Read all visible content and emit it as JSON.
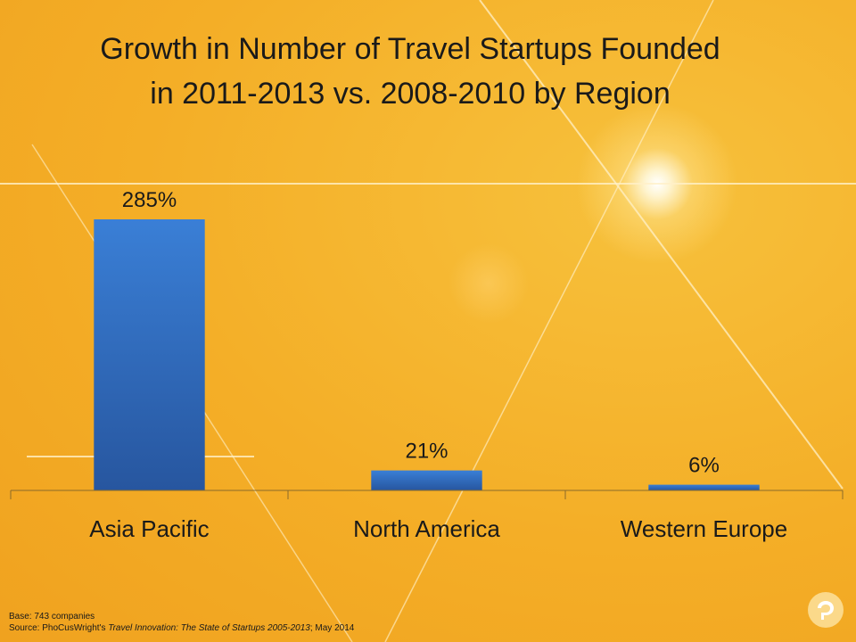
{
  "title": {
    "line1": "Growth in Number of Travel Startups Founded",
    "line2": "in 2011-2013 vs. 2008-2010 by Region"
  },
  "chart_data": {
    "type": "bar",
    "title": "Growth in Number of Travel Startups Founded in 2011-2013 vs. 2008-2010 by Region",
    "categories": [
      "Asia Pacific",
      "North America",
      "Western Europe"
    ],
    "values": [
      285,
      21,
      6
    ],
    "value_labels": [
      "285%",
      "21%",
      "6%"
    ],
    "unit": "%",
    "xlabel": "",
    "ylabel": "",
    "ylim": [
      0,
      300
    ],
    "grid": false,
    "legend": "none",
    "bar_color": "#2f6cc0"
  },
  "footnote": {
    "base": "Base: 743 companies",
    "source_prefix": "Source: PhoCusWright's ",
    "source_title": "Travel Innovation: The State of Startups 2005-2013",
    "source_suffix": "; May 2014"
  },
  "colors": {
    "background": "#f4ae27",
    "text": "#1a1a1a"
  },
  "logo": {
    "icon": "speech-bubble-icon"
  }
}
